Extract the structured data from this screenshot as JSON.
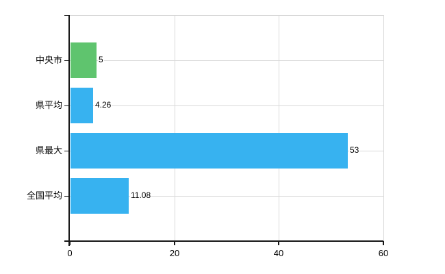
{
  "chart_data": {
    "type": "bar",
    "orientation": "horizontal",
    "title": "",
    "xlabel": "",
    "ylabel": "",
    "categories": [
      "中央市",
      "県平均",
      "県最大",
      "全国平均"
    ],
    "values": [
      5,
      4.26,
      53,
      11.08
    ],
    "value_labels": [
      "5",
      "4.26",
      "53",
      "11.08"
    ],
    "bar_colors": [
      "#5fc46e",
      "#37b2f0",
      "#37b2f0",
      "#37b2f0"
    ],
    "xlim": [
      0,
      60
    ],
    "xticks": [
      0,
      20,
      40,
      60
    ],
    "xtick_labels": [
      "0",
      "20",
      "40",
      "60"
    ],
    "grid": true,
    "legend": false,
    "colors": {
      "grid": "#d9d9d9",
      "top_border": "#d4d4d4",
      "axis": "#161616",
      "text": "#000000",
      "background": "#ffffff"
    }
  }
}
